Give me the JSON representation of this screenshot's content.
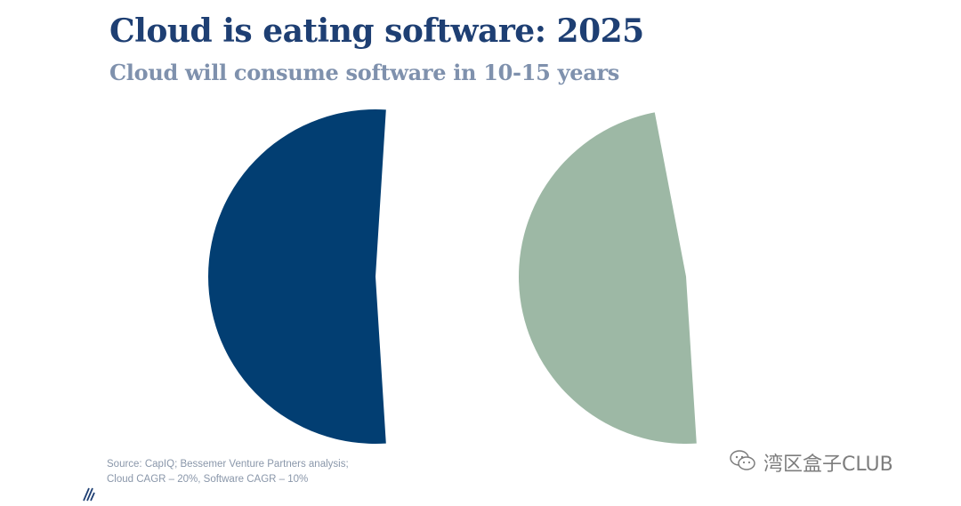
{
  "title": "Cloud is eating software: 2025",
  "subtitle": "Cloud will consume software in 10-15 years",
  "chart_data": {
    "type": "pie",
    "title": "Cloud is eating software: 2025",
    "subtitle": "Cloud will consume software in 10-15 years",
    "slices": [
      {
        "label": "",
        "value": 52,
        "color": "#023e72"
      },
      {
        "label": "",
        "value": 48,
        "color": "#9db8a5"
      }
    ],
    "note": "Pie split into two separated halves"
  },
  "source": {
    "line1": "Source: CapIQ; Bessemer Venture Partners analysis;",
    "line2": "Cloud CAGR – 20%, Software CAGR – 10%"
  },
  "logo": {
    "icon": "bessemer-logo-icon"
  },
  "watermark": {
    "icon": "wechat-icon",
    "text": "湾区盒子CLUB"
  }
}
